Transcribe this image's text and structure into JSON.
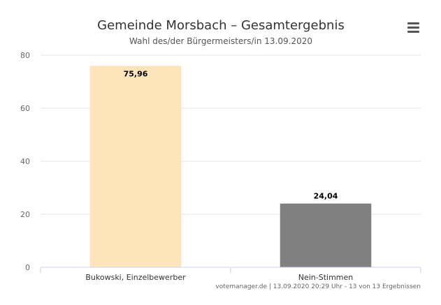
{
  "chart_data": {
    "type": "bar",
    "title": "Gemeinde Morsbach – Gesamtergebnis",
    "subtitle": "Wahl des/der Bürgermeisters/in 13.09.2020",
    "categories": [
      "Bukowski, Einzelbewerber",
      "Nein-Stimmen"
    ],
    "values": [
      75.96,
      24.04
    ],
    "data_labels": [
      "75,96",
      "24,04"
    ],
    "colors": [
      "#fde4bb",
      "#808080"
    ],
    "ylim": [
      0,
      80
    ],
    "yticks": [
      "0",
      "20",
      "40",
      "60",
      "80"
    ],
    "ytick_values": [
      0,
      20,
      40,
      60,
      80
    ],
    "grid": true,
    "xlabel": "",
    "ylabel": ""
  },
  "credits": "votemanager.de | 13.09.2020 20:29 Uhr - 13 von 13 Ergebnissen",
  "menu": {
    "icon": "hamburger-menu-icon"
  }
}
